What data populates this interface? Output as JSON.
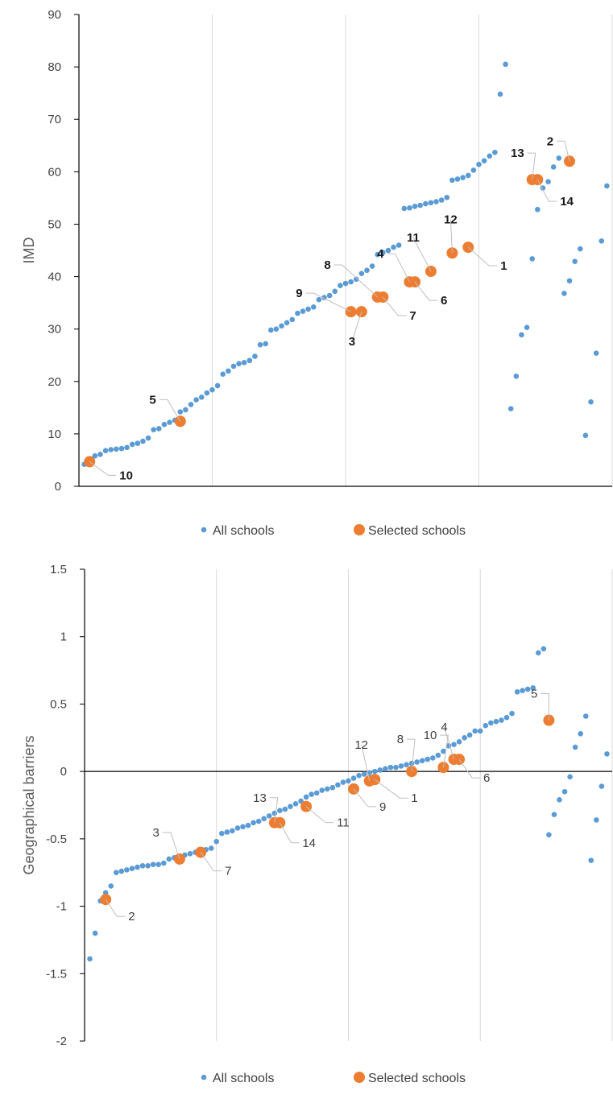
{
  "colors": {
    "all": "#5B9BD5",
    "selected": "#ED7D31",
    "grid": "#D9D9D9",
    "axis": "#000000"
  },
  "chart_data": [
    {
      "type": "scatter",
      "title": "",
      "xlabel": "",
      "ylabel": "IMD",
      "ylim": [
        0,
        90
      ],
      "yticks": [
        0,
        10,
        20,
        30,
        40,
        50,
        60,
        70,
        80,
        90
      ],
      "x_vgrid": [
        25,
        50,
        75,
        100
      ],
      "xlim": [
        0,
        100
      ],
      "grid": true,
      "legend_position": "bottom",
      "legend": [
        "All schools",
        "Selected schools"
      ],
      "series": [
        {
          "name": "All schools",
          "x": [
            1,
            2,
            3,
            4,
            5,
            6,
            7,
            8,
            9,
            10,
            11,
            12,
            13,
            14,
            15,
            16,
            17,
            18,
            19,
            20,
            21,
            22,
            23,
            24,
            25,
            26,
            27,
            28,
            29,
            30,
            31,
            32,
            33,
            34,
            35,
            36,
            37,
            38,
            39,
            40,
            41,
            42,
            43,
            44,
            45,
            46,
            47,
            48,
            49,
            50,
            51,
            52,
            53,
            54,
            55,
            56,
            57,
            58,
            59,
            60,
            61,
            62,
            63,
            64,
            65,
            66,
            67,
            68,
            69,
            70,
            71,
            72,
            73,
            74,
            75,
            76,
            77,
            78,
            79,
            80,
            81,
            82,
            83,
            84,
            85,
            86,
            87,
            88,
            89,
            90,
            91,
            92,
            93,
            94,
            95,
            96,
            97,
            98,
            99
          ],
          "y": [
            4.2,
            5.0,
            5.8,
            6.1,
            6.8,
            7.0,
            7.1,
            7.2,
            7.4,
            8.0,
            8.2,
            8.6,
            9.2,
            10.8,
            11.0,
            11.8,
            12.2,
            12.6,
            14.2,
            14.6,
            15.6,
            16.5,
            17.0,
            17.8,
            18.4,
            19.2,
            21.4,
            22.0,
            22.9,
            23.4,
            23.6,
            24.0,
            24.8,
            27.0,
            27.2,
            29.8,
            30.0,
            30.6,
            31.2,
            31.8,
            33.0,
            33.4,
            33.8,
            34.2,
            35.6,
            36.0,
            36.4,
            37.2,
            38.3,
            38.7,
            39.0,
            39.5,
            40.6,
            41.2,
            42.0,
            44.2,
            44.6,
            45.0,
            45.6,
            46.0,
            53.0,
            53.1,
            53.4,
            53.6,
            53.9,
            54.1,
            54.3,
            54.6,
            55.1,
            58.4,
            58.6,
            58.9,
            59.3,
            60.3,
            61.4,
            62.1,
            63.0,
            63.7,
            74.8,
            80.5,
            14.8,
            21.0,
            28.9,
            30.3,
            43.4,
            52.8,
            56.9,
            58.1,
            60.9,
            62.6,
            36.8,
            39.2,
            42.9,
            45.3,
            9.7,
            16.1,
            25.4,
            46.8,
            57.3
          ]
        },
        {
          "name": "Selected schools",
          "x": [
            73,
            92,
            53,
            62,
            19,
            63,
            57,
            56,
            51,
            2,
            66,
            70,
            85,
            86
          ],
          "y": [
            45.6,
            62.0,
            33.3,
            39.0,
            12.4,
            39.0,
            36.1,
            36.1,
            33.3,
            4.7,
            41.0,
            44.5,
            58.5,
            58.5
          ],
          "labels": [
            "1",
            "2",
            "3",
            "4",
            "5",
            "6",
            "7",
            "8",
            "9",
            "10",
            "11",
            "12",
            "13",
            "14"
          ]
        }
      ]
    },
    {
      "type": "scatter",
      "title": "",
      "xlabel": "",
      "ylabel": "Geographical barriers",
      "ylim": [
        -2,
        1.5
      ],
      "yticks": [
        "1.5",
        "1",
        "0.5",
        "0",
        "-0.5",
        "-1",
        "-1.5",
        "-2"
      ],
      "yticks_values": [
        1.5,
        1,
        0.5,
        0,
        -0.5,
        -1,
        -1.5,
        -2
      ],
      "x_vgrid": [
        25,
        50,
        75,
        100
      ],
      "xlim": [
        0,
        100
      ],
      "grid": true,
      "legend_position": "bottom",
      "legend": [
        "All schools",
        "Selected schools"
      ],
      "series": [
        {
          "name": "All schools",
          "x": [
            1,
            2,
            3,
            4,
            5,
            6,
            7,
            8,
            9,
            10,
            11,
            12,
            13,
            14,
            15,
            16,
            17,
            18,
            19,
            20,
            21,
            22,
            23,
            24,
            25,
            26,
            27,
            28,
            29,
            30,
            31,
            32,
            33,
            34,
            35,
            36,
            37,
            38,
            39,
            40,
            41,
            42,
            43,
            44,
            45,
            46,
            47,
            48,
            49,
            50,
            51,
            52,
            53,
            54,
            55,
            56,
            57,
            58,
            59,
            60,
            61,
            62,
            63,
            64,
            65,
            66,
            67,
            68,
            69,
            70,
            71,
            72,
            73,
            74,
            75,
            76,
            77,
            78,
            79,
            80,
            81,
            82,
            83,
            84,
            85,
            86,
            87,
            88,
            89,
            90,
            91,
            92,
            93,
            94,
            95,
            96,
            97,
            98,
            99
          ],
          "y": [
            -1.39,
            -1.2,
            -0.96,
            -0.9,
            -0.85,
            -0.75,
            -0.74,
            -0.73,
            -0.72,
            -0.71,
            -0.7,
            -0.7,
            -0.69,
            -0.69,
            -0.68,
            -0.65,
            -0.64,
            -0.63,
            -0.62,
            -0.61,
            -0.6,
            -0.59,
            -0.58,
            -0.57,
            -0.52,
            -0.46,
            -0.45,
            -0.44,
            -0.42,
            -0.41,
            -0.4,
            -0.38,
            -0.37,
            -0.35,
            -0.33,
            -0.31,
            -0.29,
            -0.28,
            -0.26,
            -0.24,
            -0.22,
            -0.19,
            -0.17,
            -0.16,
            -0.14,
            -0.13,
            -0.12,
            -0.1,
            -0.08,
            -0.07,
            -0.05,
            -0.03,
            -0.02,
            -0.01,
            0.0,
            0.01,
            0.02,
            0.03,
            0.03,
            0.04,
            0.05,
            0.06,
            0.07,
            0.08,
            0.09,
            0.1,
            0.12,
            0.15,
            0.19,
            0.2,
            0.22,
            0.25,
            0.27,
            0.3,
            0.3,
            0.34,
            0.36,
            0.37,
            0.38,
            0.4,
            0.43,
            0.59,
            0.6,
            0.61,
            0.62,
            0.88,
            0.91,
            -0.47,
            -0.32,
            -0.21,
            -0.15,
            -0.04,
            0.18,
            0.28,
            0.41,
            -0.66,
            -0.36,
            -0.11,
            0.13
          ]
        },
        {
          "name": "Selected schools",
          "x": [
            55,
            4,
            18,
            70,
            88,
            71,
            22,
            62,
            51,
            68,
            42,
            54,
            36,
            37
          ],
          "y": [
            -0.06,
            -0.95,
            -0.65,
            0.09,
            0.38,
            0.09,
            -0.6,
            0.0,
            -0.13,
            0.03,
            -0.26,
            -0.07,
            -0.38,
            -0.38
          ],
          "labels": [
            "1",
            "2",
            "3",
            "4",
            "5",
            "6",
            "7",
            "8",
            "9",
            "10",
            "11",
            "12",
            "13",
            "14"
          ]
        }
      ]
    }
  ]
}
